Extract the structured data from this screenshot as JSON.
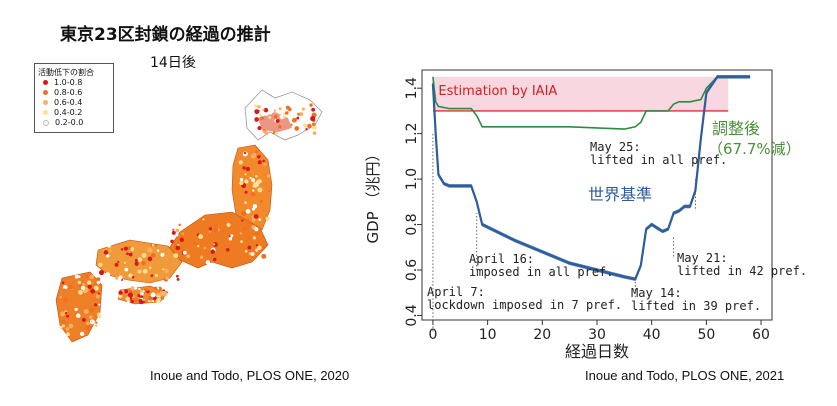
{
  "left_panel": {
    "title": "東京23区封鎖の経過の推計",
    "subtitle": "14日後",
    "legend": {
      "title": "活動低下の割合",
      "items": [
        {
          "label": "1.0-0.8",
          "color": "#d7191c"
        },
        {
          "label": "0.8-0.6",
          "color": "#f07020"
        },
        {
          "label": "0.6-0.4",
          "color": "#fdae61"
        },
        {
          "label": "0.4-0.2",
          "color": "#fee090"
        },
        {
          "label": "0.2-0.0",
          "color": "#ffffff"
        }
      ]
    },
    "citation": "Inoue and Todo, PLOS ONE, 2020"
  },
  "right_panel": {
    "citation": "Inoue and Todo, PLOS ONE, 2021"
  },
  "chart_data": {
    "type": "line",
    "xlabel": "経過日数",
    "ylabel": "GDP （兆円）",
    "xlim": [
      -2,
      62
    ],
    "ylim": [
      0.38,
      1.48
    ],
    "xticks": [
      0,
      10,
      20,
      30,
      40,
      50,
      60
    ],
    "yticks": [
      0.4,
      0.6,
      0.8,
      1.0,
      1.2,
      1.4
    ],
    "reference": {
      "label": "Estimation by IAIA",
      "y": 1.3,
      "band": [
        1.3,
        1.45
      ],
      "band_x": [
        0,
        54
      ]
    },
    "series": [
      {
        "name": "調整後",
        "name2": "（67.7%減）",
        "color": "#2e8b3e",
        "x": [
          0,
          0.5,
          1,
          3,
          7,
          8,
          9,
          15,
          25,
          35,
          37,
          38,
          39,
          40,
          43,
          44,
          45,
          47,
          49,
          50,
          52,
          55,
          58
        ],
        "y": [
          1.45,
          1.34,
          1.32,
          1.31,
          1.31,
          1.28,
          1.23,
          1.23,
          1.23,
          1.22,
          1.23,
          1.25,
          1.3,
          1.3,
          1.3,
          1.33,
          1.34,
          1.34,
          1.35,
          1.4,
          1.45,
          1.45,
          1.45
        ]
      },
      {
        "name": "世界基準",
        "color": "#2d5d9a",
        "x": [
          0,
          0.5,
          1,
          2,
          3,
          5,
          7,
          8,
          9,
          15,
          25,
          35,
          37,
          38,
          39,
          40,
          42,
          43,
          44,
          45,
          46,
          47,
          48,
          49,
          50,
          52,
          55,
          58
        ],
        "y": [
          1.42,
          1.2,
          1.02,
          0.98,
          0.97,
          0.97,
          0.97,
          0.9,
          0.8,
          0.73,
          0.63,
          0.57,
          0.56,
          0.62,
          0.78,
          0.8,
          0.77,
          0.78,
          0.85,
          0.86,
          0.88,
          0.88,
          0.95,
          1.18,
          1.38,
          1.45,
          1.45,
          1.45
        ]
      }
    ],
    "annotations": [
      {
        "lines": [
          "April 7:",
          "lockdown imposed in 7 pref."
        ],
        "x": 0
      },
      {
        "lines": [
          "April 16:",
          "imposed in all pref."
        ],
        "x": 8
      },
      {
        "lines": [
          "May 14:",
          "lifted in 39 pref."
        ],
        "x": 37
      },
      {
        "lines": [
          "May 21:",
          "lifted in 42 pref."
        ],
        "x": 44
      },
      {
        "lines": [
          "May 25:",
          "lifted in all pref."
        ],
        "x": 48
      }
    ]
  }
}
